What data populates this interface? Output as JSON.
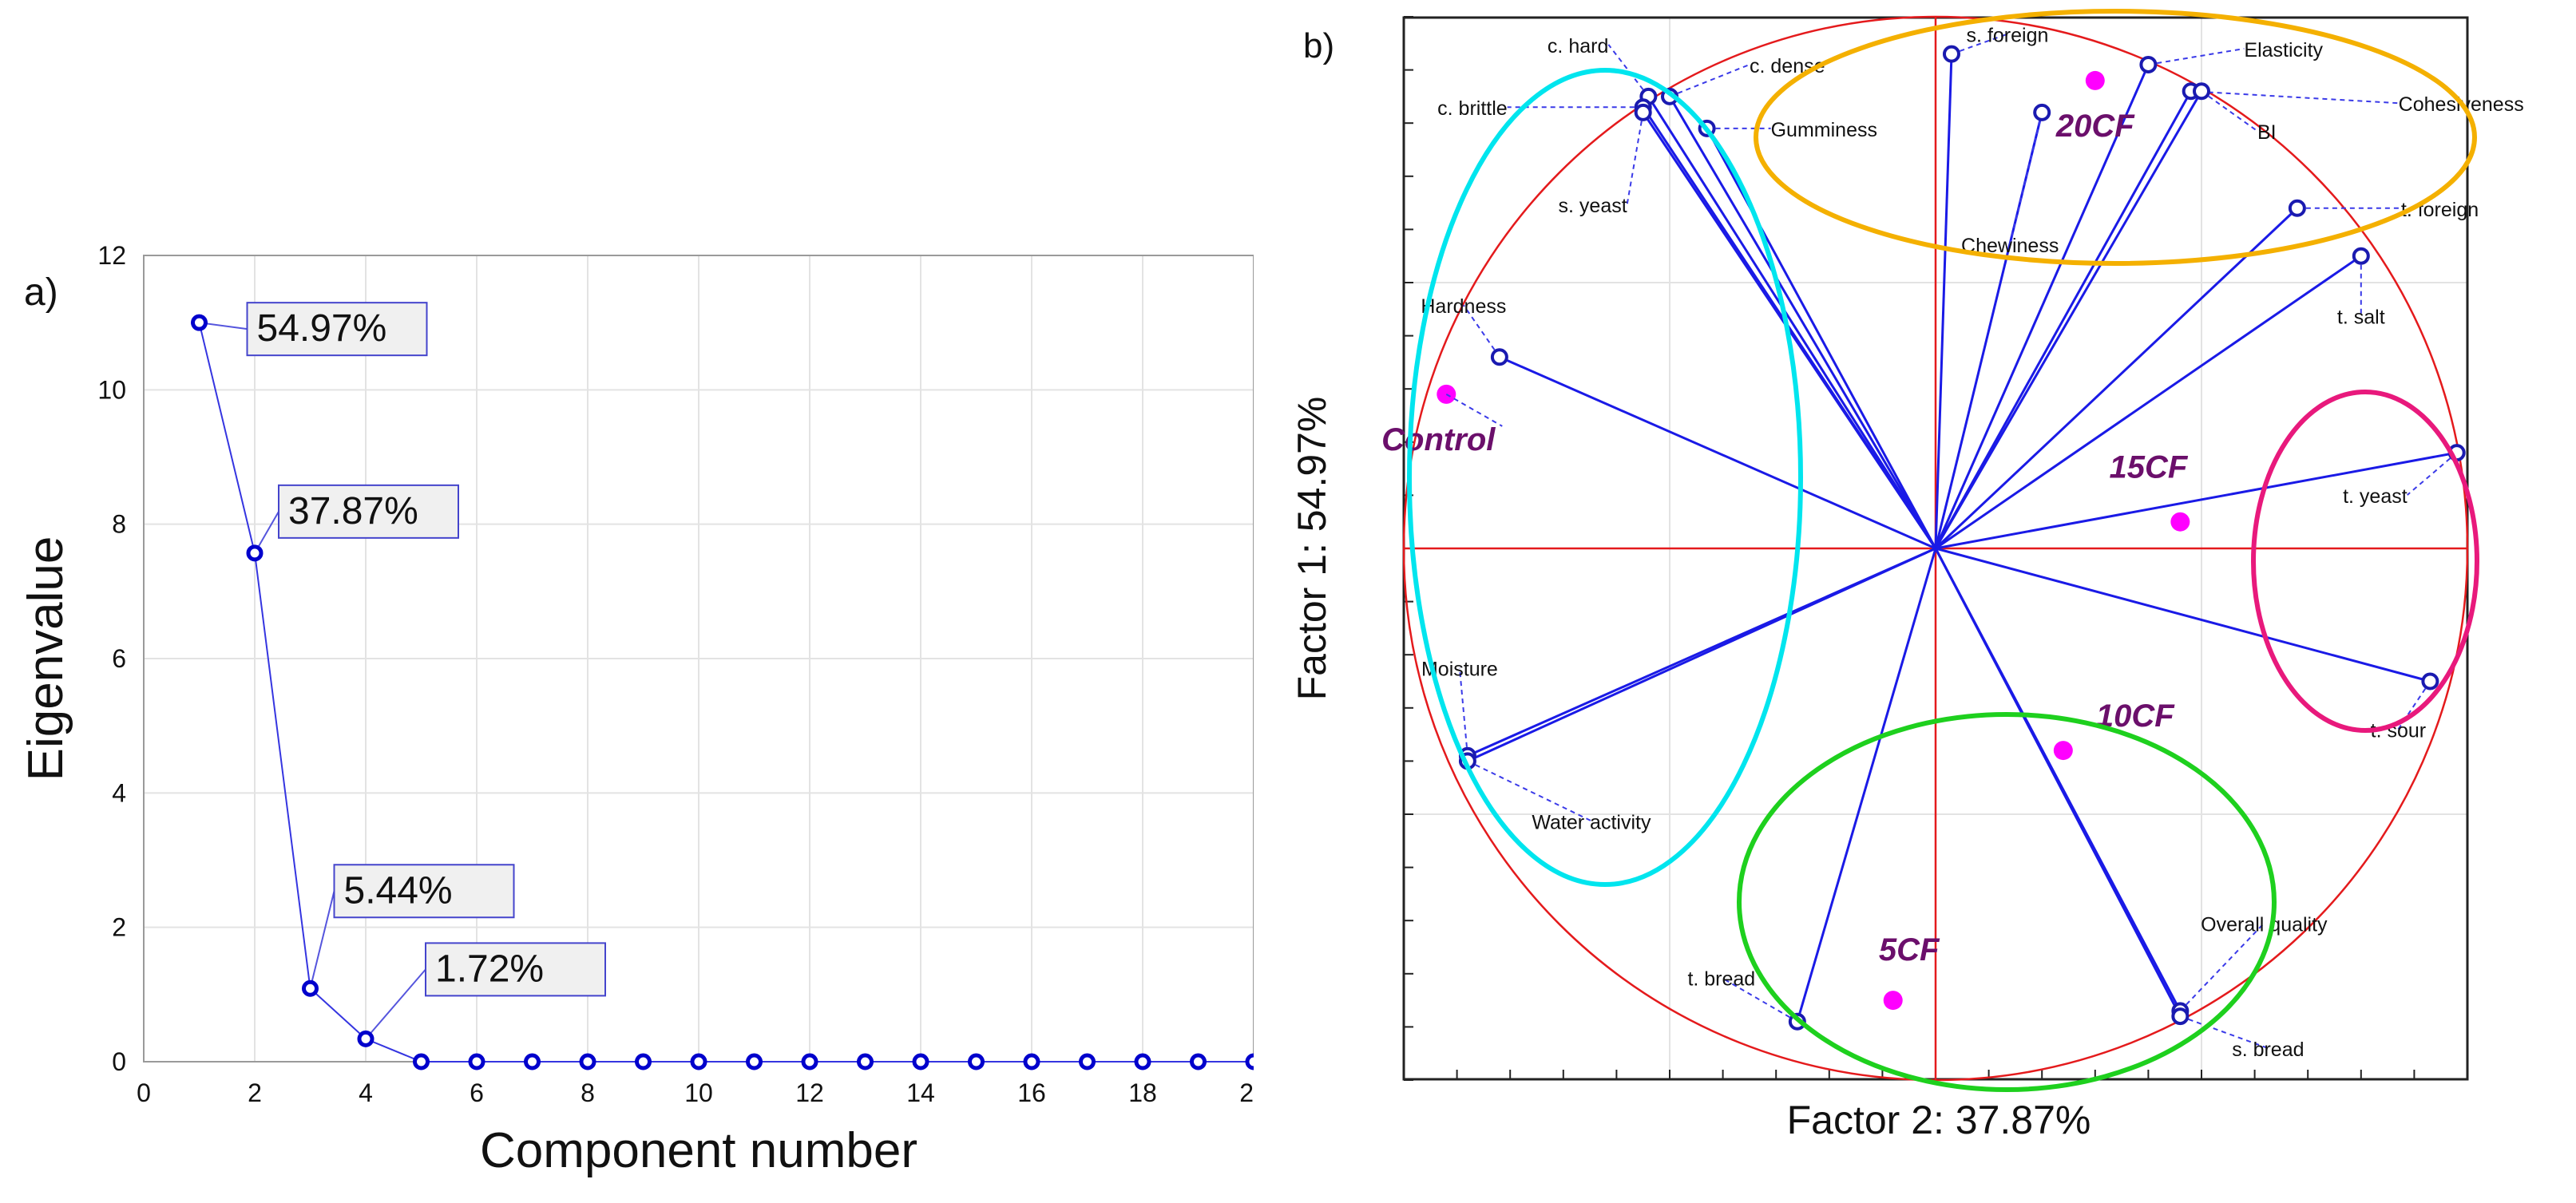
{
  "chart_data": [
    {
      "type": "scatter",
      "panel_label": "a)",
      "xlabel": "Component number",
      "ylabel": "Eigenvalue",
      "xlim": [
        0,
        20
      ],
      "ylim": [
        0,
        12
      ],
      "xticks": [
        "0",
        "2",
        "4",
        "6",
        "8",
        "10",
        "12",
        "14",
        "16",
        "18",
        "20"
      ],
      "yticks": [
        "0",
        "2",
        "4",
        "6",
        "8",
        "10",
        "12"
      ],
      "grid": true,
      "line": true,
      "x": [
        1,
        2,
        3,
        4,
        5,
        6,
        7,
        8,
        9,
        10,
        11,
        12,
        13,
        14,
        15,
        16,
        17,
        18,
        19,
        20
      ],
      "y": [
        11.0,
        7.57,
        1.09,
        0.34,
        0,
        0,
        0,
        0,
        0,
        0,
        0,
        0,
        0,
        0,
        0,
        0,
        0,
        0,
        0,
        0
      ],
      "annotations": [
        {
          "x": 1,
          "text": "54.97%"
        },
        {
          "x": 2,
          "text": "37.87%"
        },
        {
          "x": 3,
          "text": "5.44%"
        },
        {
          "x": 4,
          "text": "1.72%"
        }
      ],
      "color": "#0000cc"
    },
    {
      "type": "scatter",
      "panel_label": "b)",
      "xlabel": "Factor 2: 37.87%",
      "ylabel": "Factor 1: 54.97%",
      "xlim": [
        -1.0,
        1.0
      ],
      "ylim": [
        -1.0,
        1.0
      ],
      "grid": true,
      "variables": [
        {
          "name": "c. hard",
          "x": -0.54,
          "y": 0.85
        },
        {
          "name": "c. dense",
          "x": -0.5,
          "y": 0.85
        },
        {
          "name": "c. brittle",
          "x": -0.55,
          "y": 0.83
        },
        {
          "name": "s. yeast",
          "x": -0.55,
          "y": 0.82
        },
        {
          "name": "Gumminess",
          "x": -0.43,
          "y": 0.79
        },
        {
          "name": "s. foreign",
          "x": 0.03,
          "y": 0.93
        },
        {
          "name": "Elasticity",
          "x": 0.4,
          "y": 0.91
        },
        {
          "name": "Cohesiveness",
          "x": 0.48,
          "y": 0.86
        },
        {
          "name": "BI",
          "x": 0.5,
          "y": 0.86
        },
        {
          "name": "Chewiness",
          "x": 0.2,
          "y": 0.82
        },
        {
          "name": "t. foreign",
          "x": 0.68,
          "y": 0.64
        },
        {
          "name": "t. salt",
          "x": 0.8,
          "y": 0.55
        },
        {
          "name": "Hardness",
          "x": -0.82,
          "y": 0.36
        },
        {
          "name": "t. yeast",
          "x": 0.98,
          "y": 0.18
        },
        {
          "name": "t. sour",
          "x": 0.93,
          "y": -0.25
        },
        {
          "name": "Moisture",
          "x": -0.88,
          "y": -0.39
        },
        {
          "name": "Water activity",
          "x": -0.88,
          "y": -0.4
        },
        {
          "name": "t. bread",
          "x": -0.26,
          "y": -0.89
        },
        {
          "name": "Overall quality",
          "x": 0.46,
          "y": -0.87
        },
        {
          "name": "s. bread",
          "x": 0.46,
          "y": -0.88
        }
      ],
      "samples": [
        {
          "name": "Control",
          "x": -0.92,
          "y": 0.29
        },
        {
          "name": "20CF",
          "x": 0.3,
          "y": 0.88
        },
        {
          "name": "15CF",
          "x": 0.46,
          "y": 0.05
        },
        {
          "name": "10CF",
          "x": 0.24,
          "y": -0.38
        },
        {
          "name": "5CF",
          "x": -0.08,
          "y": -0.85
        }
      ],
      "groups": [
        {
          "name": "cyan",
          "color": "#00e5ee"
        },
        {
          "name": "orange",
          "color": "#f4b000"
        },
        {
          "name": "pink",
          "color": "#e8197c"
        },
        {
          "name": "green",
          "color": "#1ed01e"
        }
      ],
      "circle_color": "#e41a1c",
      "vector_color": "#1a1ae6",
      "sample_color": "#ff00ff",
      "sample_label_color": "#6b0f6b"
    }
  ]
}
